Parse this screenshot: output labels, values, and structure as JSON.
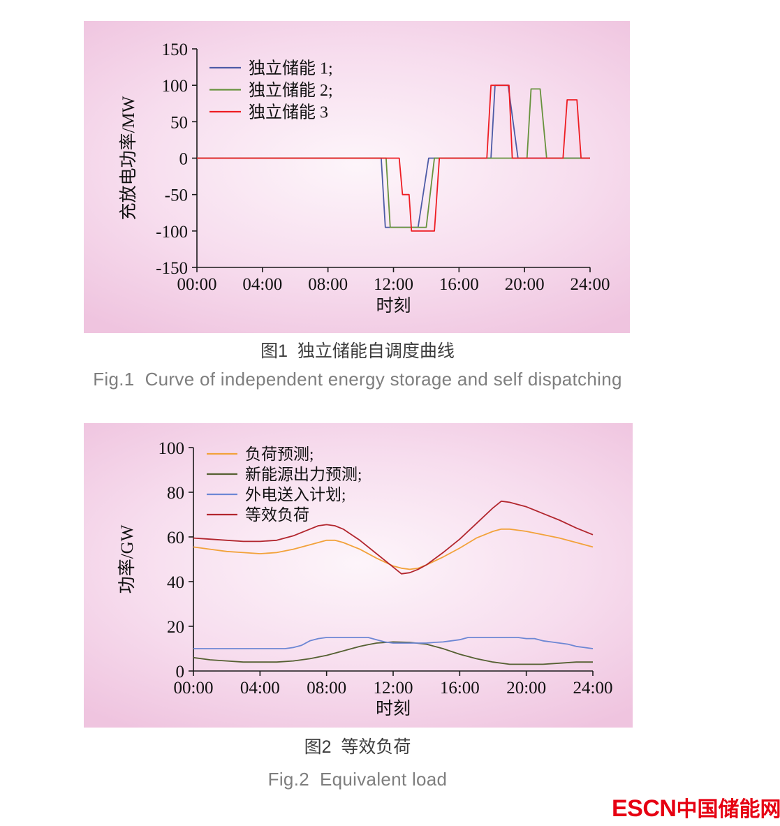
{
  "theme": {
    "panel_center": "#fdf5fa",
    "panel_mid": "#f7ddee",
    "panel_edge": "#efc4df"
  },
  "figure1": {
    "caption_zh": "图1  独立储能自调度曲线",
    "caption_en": "Fig.1  Curve of independent energy storage and self dispatching"
  },
  "figure2": {
    "caption_zh": "图2  等效负荷",
    "caption_en": "Fig.2  Equivalent load"
  },
  "logo": {
    "escn": "ESCN",
    "site_name": "中国储能网",
    "color": "#e60012"
  },
  "chart_data": [
    {
      "type": "line",
      "title": "",
      "xlabel": "时刻",
      "ylabel": "充放电功率/MW",
      "xlim": [
        0,
        24
      ],
      "ylim": [
        -150,
        150
      ],
      "grid": false,
      "legend_position": "top-left",
      "xticks": [
        {
          "v": 0,
          "label": "00:00"
        },
        {
          "v": 4,
          "label": "04:00"
        },
        {
          "v": 8,
          "label": "08:00"
        },
        {
          "v": 12,
          "label": "12:00"
        },
        {
          "v": 16,
          "label": "16:00"
        },
        {
          "v": 20,
          "label": "20:00"
        },
        {
          "v": 24,
          "label": "24:00"
        }
      ],
      "yticks": [
        150,
        100,
        50,
        0,
        -50,
        -100,
        -150
      ],
      "series": [
        {
          "name": "独立储能 1;",
          "color": "#4d5ba6",
          "points": [
            [
              0,
              0
            ],
            [
              11.25,
              0
            ],
            [
              11.5,
              -95
            ],
            [
              13.5,
              -95
            ],
            [
              14.15,
              0
            ],
            [
              17.95,
              0
            ],
            [
              18.2,
              100
            ],
            [
              19.0,
              100
            ],
            [
              19.6,
              0
            ],
            [
              24,
              0
            ]
          ]
        },
        {
          "name": "独立储能 2;",
          "color": "#67923d",
          "points": [
            [
              0,
              0
            ],
            [
              11.55,
              0
            ],
            [
              11.8,
              -95
            ],
            [
              14.0,
              -95
            ],
            [
              14.5,
              0
            ],
            [
              20.15,
              0
            ],
            [
              20.4,
              95
            ],
            [
              20.95,
              95
            ],
            [
              21.35,
              0
            ],
            [
              24,
              0
            ]
          ]
        },
        {
          "name": "独立储能 3",
          "color": "#ee1d23",
          "points": [
            [
              0,
              0
            ],
            [
              12.35,
              0
            ],
            [
              12.55,
              -50
            ],
            [
              12.95,
              -50
            ],
            [
              13.1,
              -100
            ],
            [
              14.5,
              -100
            ],
            [
              14.8,
              0
            ],
            [
              17.7,
              0
            ],
            [
              17.95,
              100
            ],
            [
              19.05,
              100
            ],
            [
              19.25,
              0
            ],
            [
              22.35,
              0
            ],
            [
              22.6,
              80
            ],
            [
              23.2,
              80
            ],
            [
              23.45,
              0
            ],
            [
              24,
              0
            ]
          ]
        }
      ]
    },
    {
      "type": "line",
      "title": "",
      "xlabel": "时刻",
      "ylabel": "功率/GW",
      "xlim": [
        0,
        24
      ],
      "ylim": [
        0,
        100
      ],
      "grid": false,
      "legend_position": "top-left",
      "xticks": [
        {
          "v": 0,
          "label": "00:00"
        },
        {
          "v": 4,
          "label": "04:00"
        },
        {
          "v": 8,
          "label": "08:00"
        },
        {
          "v": 12,
          "label": "12:00"
        },
        {
          "v": 16,
          "label": "16:00"
        },
        {
          "v": 20,
          "label": "20:00"
        },
        {
          "v": 24,
          "label": "24:00"
        }
      ],
      "yticks": [
        100,
        80,
        60,
        40,
        20,
        0
      ],
      "series": [
        {
          "name": "负荷预测;",
          "color": "#f2a23a",
          "points": [
            [
              0,
              55.5
            ],
            [
              1,
              54.5
            ],
            [
              2,
              53.5
            ],
            [
              3,
              53
            ],
            [
              4,
              52.5
            ],
            [
              5,
              53
            ],
            [
              6,
              54.5
            ],
            [
              7,
              56.5
            ],
            [
              7.5,
              57.5
            ],
            [
              8,
              58.5
            ],
            [
              8.5,
              58.5
            ],
            [
              9,
              57.5
            ],
            [
              10,
              54.5
            ],
            [
              11,
              50.5
            ],
            [
              12,
              47
            ],
            [
              12.5,
              46
            ],
            [
              13,
              45.5
            ],
            [
              13.5,
              46
            ],
            [
              14,
              47.5
            ],
            [
              15,
              51
            ],
            [
              16,
              55
            ],
            [
              17,
              59.5
            ],
            [
              18,
              62.5
            ],
            [
              18.5,
              63.5
            ],
            [
              19,
              63.5
            ],
            [
              19.5,
              63
            ],
            [
              20,
              62.5
            ],
            [
              21,
              61
            ],
            [
              22,
              59.5
            ],
            [
              23,
              57.5
            ],
            [
              24,
              55.5
            ]
          ]
        },
        {
          "name": "新能源出力预测;",
          "color": "#556032",
          "points": [
            [
              0,
              6
            ],
            [
              1,
              5
            ],
            [
              2,
              4.5
            ],
            [
              3,
              4
            ],
            [
              4,
              4
            ],
            [
              5,
              4
            ],
            [
              6,
              4.5
            ],
            [
              7,
              5.5
            ],
            [
              8,
              7
            ],
            [
              9,
              9
            ],
            [
              10,
              11
            ],
            [
              10.5,
              11.8
            ],
            [
              11,
              12.5
            ],
            [
              12,
              13
            ],
            [
              13,
              12.8
            ],
            [
              14,
              12
            ],
            [
              15,
              10
            ],
            [
              16,
              7.5
            ],
            [
              17,
              5.5
            ],
            [
              18,
              4
            ],
            [
              19,
              3
            ],
            [
              20,
              3
            ],
            [
              21,
              3
            ],
            [
              22,
              3.5
            ],
            [
              23,
              4
            ],
            [
              24,
              4
            ]
          ]
        },
        {
          "name": "外电送入计划;",
          "color": "#6d87d4",
          "points": [
            [
              0,
              10
            ],
            [
              5.5,
              10
            ],
            [
              6,
              10.5
            ],
            [
              6.5,
              11.5
            ],
            [
              7,
              13.5
            ],
            [
              7.5,
              14.5
            ],
            [
              8,
              15
            ],
            [
              10.5,
              15
            ],
            [
              11,
              14
            ],
            [
              11.5,
              13
            ],
            [
              12,
              12.5
            ],
            [
              14,
              12.5
            ],
            [
              14.5,
              12.8
            ],
            [
              15,
              13
            ],
            [
              16,
              14
            ],
            [
              16.5,
              15
            ],
            [
              19.5,
              15
            ],
            [
              20,
              14.5
            ],
            [
              20.5,
              14.5
            ],
            [
              21,
              13.5
            ],
            [
              21.5,
              13
            ],
            [
              22,
              12.5
            ],
            [
              22.5,
              12
            ],
            [
              23,
              11
            ],
            [
              23.5,
              10.5
            ],
            [
              24,
              10
            ]
          ]
        },
        {
          "name": "等效负荷",
          "color": "#b2262e",
          "points": [
            [
              0,
              59.5
            ],
            [
              1,
              59
            ],
            [
              2,
              58.5
            ],
            [
              3,
              58
            ],
            [
              4,
              58
            ],
            [
              5,
              58.5
            ],
            [
              6,
              60.5
            ],
            [
              7,
              63.5
            ],
            [
              7.5,
              65
            ],
            [
              8,
              65.5
            ],
            [
              8.5,
              65
            ],
            [
              9,
              63.5
            ],
            [
              10,
              58.5
            ],
            [
              11,
              52.5
            ],
            [
              12,
              46.5
            ],
            [
              12.5,
              43.5
            ],
            [
              13,
              44
            ],
            [
              13.5,
              45.5
            ],
            [
              14,
              47.5
            ],
            [
              15,
              53
            ],
            [
              16,
              59
            ],
            [
              17,
              66
            ],
            [
              18,
              73
            ],
            [
              18.5,
              76
            ],
            [
              19,
              75.5
            ],
            [
              19.5,
              74.5
            ],
            [
              20,
              73.5
            ],
            [
              21,
              70.5
            ],
            [
              22,
              67.5
            ],
            [
              23,
              64
            ],
            [
              24,
              61
            ]
          ]
        }
      ]
    }
  ]
}
